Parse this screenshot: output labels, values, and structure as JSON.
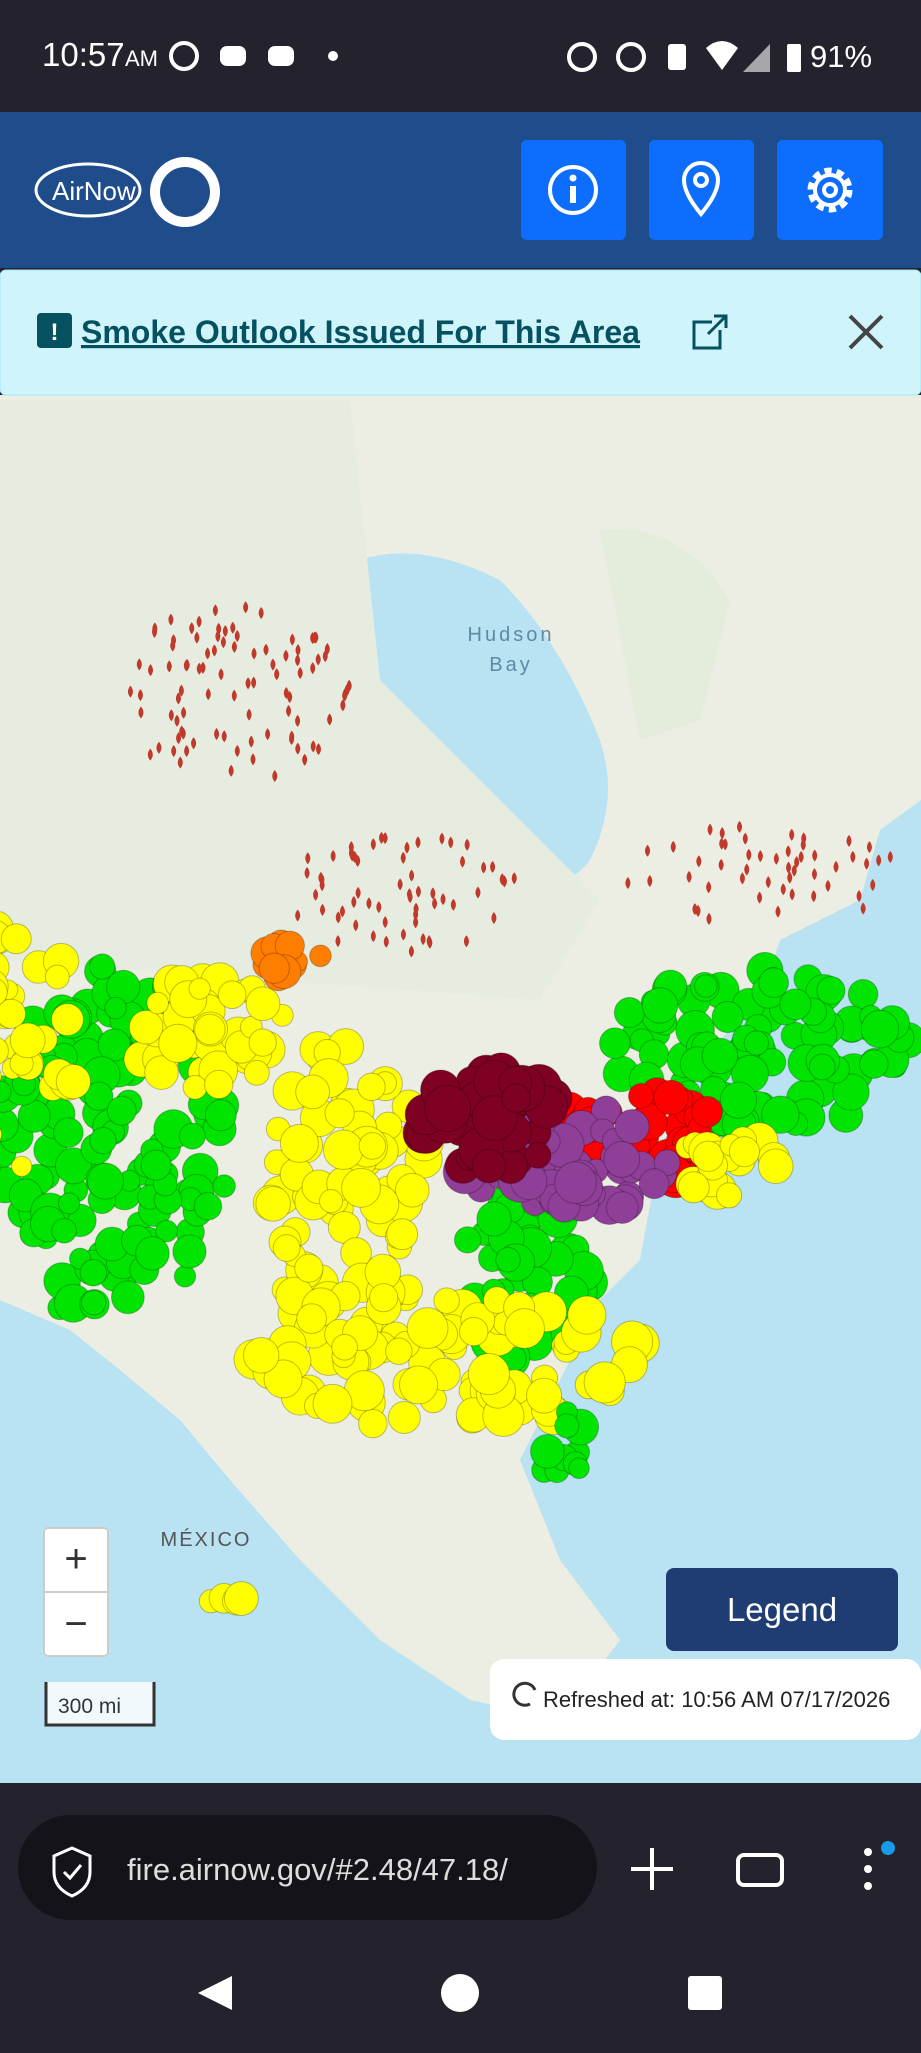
{
  "status": {
    "time": "10:57",
    "ampm": "AM",
    "battery": "91%"
  },
  "header": {
    "logo": "AirNow"
  },
  "banner": {
    "text": "Smoke Outlook Issued For This Area"
  },
  "map": {
    "labels": [
      "Hudson",
      "Bay",
      "MÉXICO"
    ],
    "zoom_in": "+",
    "zoom_out": "−",
    "scale": "300 mi",
    "legend": "Legend",
    "refreshed": "Refreshed at: 10:56 AM 07/17/2026"
  },
  "browser": {
    "url": "fire.airnow.gov/#2.48/47.18/"
  }
}
